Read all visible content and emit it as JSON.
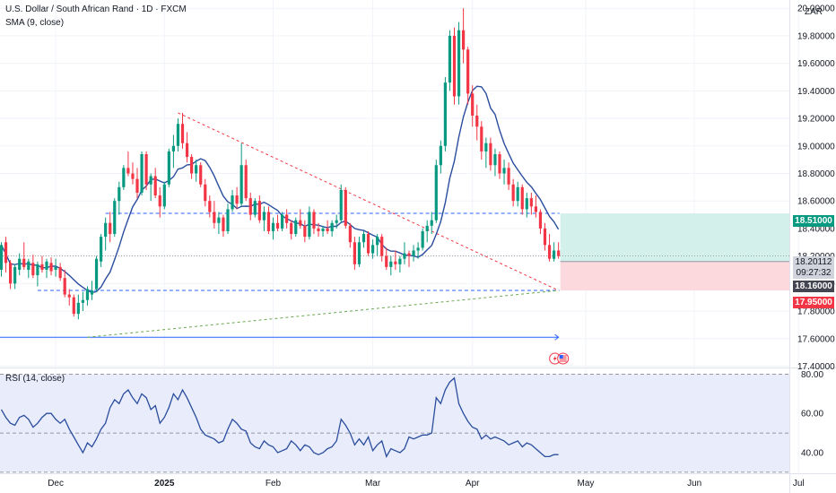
{
  "header": {
    "symbol_title": "U.S. Dollar / South African Rand · 1D · FXCM",
    "sma_label": "SMA (9, close)",
    "rsi_label": "RSI (14, close)",
    "currency": "ZAR"
  },
  "price_tags": {
    "target": "18.51000",
    "current": "18.20112",
    "countdown": "09:27:32",
    "entry": "18.16000",
    "stop": "17.95000"
  },
  "colors": {
    "up": "#089981",
    "down": "#f23645",
    "sma": "#2a4d9e",
    "rsi": "#2a4d9e",
    "level": "#2962ff",
    "downtrend": "#f23645",
    "uptrend": "#6aa84f",
    "profit_zone": "#d3f0ea",
    "loss_zone": "#fbd9dc"
  },
  "chart_data": [
    {
      "type": "candlestick",
      "title": "U.S. Dollar / South African Rand · 1D · FXCM",
      "x_ticks": [
        "Dec",
        "2025",
        "Feb",
        "Mar",
        "Apr",
        "May",
        "Jun",
        "Jul"
      ],
      "y_ticks": [
        "20.00000",
        "19.80000",
        "19.60000",
        "19.40000",
        "19.20000",
        "19.00000",
        "18.80000",
        "18.60000",
        "18.40000",
        "18.20000",
        "18.00000",
        "17.80000",
        "17.60000",
        "17.40000"
      ],
      "y_range": [
        17.39,
        20.06
      ],
      "ohlc": [
        [
          18.1,
          18.3,
          18.05,
          18.28
        ],
        [
          18.3,
          18.34,
          18.08,
          18.15
        ],
        [
          18.15,
          18.17,
          17.96,
          18.0
        ],
        [
          18.0,
          18.14,
          17.96,
          18.12
        ],
        [
          18.1,
          18.22,
          18.06,
          18.18
        ],
        [
          18.18,
          18.3,
          18.1,
          18.12
        ],
        [
          18.1,
          18.18,
          18.04,
          18.16
        ],
        [
          18.15,
          18.21,
          18.04,
          18.06
        ],
        [
          18.06,
          18.16,
          17.98,
          18.14
        ],
        [
          18.14,
          18.2,
          18.08,
          18.1
        ],
        [
          18.1,
          18.18,
          18.04,
          18.16
        ],
        [
          18.15,
          18.19,
          18.06,
          18.09
        ],
        [
          18.1,
          18.18,
          18.05,
          18.12
        ],
        [
          18.12,
          18.15,
          18.02,
          18.04
        ],
        [
          18.04,
          18.1,
          17.9,
          17.92
        ],
        [
          17.92,
          17.96,
          17.84,
          17.9
        ],
        [
          17.9,
          17.92,
          17.76,
          17.78
        ],
        [
          17.78,
          17.92,
          17.74,
          17.86
        ],
        [
          17.86,
          17.94,
          17.8,
          17.88
        ],
        [
          17.88,
          17.98,
          17.84,
          17.96
        ],
        [
          17.92,
          18.02,
          17.88,
          17.95
        ],
        [
          17.96,
          18.2,
          17.94,
          18.18
        ],
        [
          18.16,
          18.36,
          18.12,
          18.34
        ],
        [
          18.34,
          18.48,
          18.24,
          18.44
        ],
        [
          18.44,
          18.52,
          18.3,
          18.36
        ],
        [
          18.36,
          18.62,
          18.34,
          18.6
        ],
        [
          18.6,
          18.74,
          18.5,
          18.7
        ],
        [
          18.7,
          18.86,
          18.68,
          18.84
        ],
        [
          18.84,
          18.96,
          18.78,
          18.8
        ],
        [
          18.8,
          18.88,
          18.72,
          18.76
        ],
        [
          18.76,
          18.84,
          18.62,
          18.66
        ],
        [
          18.66,
          18.96,
          18.64,
          18.94
        ],
        [
          18.94,
          18.96,
          18.68,
          18.72
        ],
        [
          18.72,
          18.8,
          18.6,
          18.78
        ],
        [
          18.78,
          18.84,
          18.62,
          18.64
        ],
        [
          18.64,
          18.7,
          18.48,
          18.56
        ],
        [
          18.56,
          18.74,
          18.54,
          18.72
        ],
        [
          18.72,
          18.98,
          18.7,
          18.96
        ],
        [
          18.96,
          19.08,
          18.84,
          19.0
        ],
        [
          19.0,
          19.2,
          18.96,
          19.16
        ],
        [
          19.16,
          19.24,
          18.98,
          19.02
        ],
        [
          19.02,
          19.1,
          18.88,
          18.92
        ],
        [
          18.92,
          18.94,
          18.76,
          18.8
        ],
        [
          18.8,
          18.9,
          18.74,
          18.86
        ],
        [
          18.86,
          18.88,
          18.7,
          18.72
        ],
        [
          18.72,
          18.76,
          18.56,
          18.6
        ],
        [
          18.6,
          18.64,
          18.48,
          18.52
        ],
        [
          18.52,
          18.6,
          18.4,
          18.44
        ],
        [
          18.44,
          18.52,
          18.36,
          18.48
        ],
        [
          18.48,
          18.5,
          18.34,
          18.38
        ],
        [
          18.38,
          18.58,
          18.36,
          18.54
        ],
        [
          18.54,
          18.68,
          18.52,
          18.64
        ],
        [
          18.64,
          18.7,
          18.54,
          18.58
        ],
        [
          18.58,
          19.02,
          18.56,
          18.86
        ],
        [
          18.86,
          18.9,
          18.6,
          18.62
        ],
        [
          18.62,
          18.66,
          18.46,
          18.5
        ],
        [
          18.5,
          18.62,
          18.48,
          18.6
        ],
        [
          18.6,
          18.64,
          18.44,
          18.46
        ],
        [
          18.46,
          18.56,
          18.38,
          18.52
        ],
        [
          18.52,
          18.56,
          18.36,
          18.38
        ],
        [
          18.38,
          18.48,
          18.32,
          18.44
        ],
        [
          18.44,
          18.5,
          18.38,
          18.4
        ],
        [
          18.4,
          18.52,
          18.38,
          18.5
        ],
        [
          18.5,
          18.54,
          18.4,
          18.44
        ],
        [
          18.44,
          18.46,
          18.32,
          18.36
        ],
        [
          18.36,
          18.48,
          18.34,
          18.46
        ],
        [
          18.46,
          18.54,
          18.4,
          18.42
        ],
        [
          18.42,
          18.46,
          18.3,
          18.34
        ],
        [
          18.34,
          18.56,
          18.32,
          18.52
        ],
        [
          18.52,
          18.54,
          18.36,
          18.4
        ],
        [
          18.4,
          18.44,
          18.34,
          18.38
        ],
        [
          18.38,
          18.42,
          18.34,
          18.4
        ],
        [
          18.4,
          18.46,
          18.36,
          18.38
        ],
        [
          18.38,
          18.46,
          18.34,
          18.44
        ],
        [
          18.44,
          18.5,
          18.4,
          18.46
        ],
        [
          18.46,
          18.72,
          18.44,
          18.68
        ],
        [
          18.68,
          18.7,
          18.4,
          18.42
        ],
        [
          18.42,
          18.44,
          18.26,
          18.3
        ],
        [
          18.3,
          18.34,
          18.1,
          18.14
        ],
        [
          18.14,
          18.34,
          18.12,
          18.3
        ],
        [
          18.3,
          18.38,
          18.26,
          18.36
        ],
        [
          18.36,
          18.38,
          18.2,
          18.22
        ],
        [
          18.22,
          18.32,
          18.18,
          18.28
        ],
        [
          18.28,
          18.36,
          18.2,
          18.34
        ],
        [
          18.34,
          18.36,
          18.16,
          18.2
        ],
        [
          18.2,
          18.26,
          18.1,
          18.12
        ],
        [
          18.12,
          18.2,
          18.06,
          18.16
        ],
        [
          18.16,
          18.24,
          18.1,
          18.14
        ],
        [
          18.14,
          18.2,
          18.08,
          18.18
        ],
        [
          18.18,
          18.3,
          18.14,
          18.22
        ],
        [
          18.22,
          18.24,
          18.12,
          18.2
        ],
        [
          18.2,
          18.28,
          18.16,
          18.24
        ],
        [
          18.24,
          18.3,
          18.18,
          18.26
        ],
        [
          18.26,
          18.4,
          18.24,
          18.38
        ],
        [
          18.38,
          18.46,
          18.3,
          18.42
        ],
        [
          18.42,
          18.52,
          18.36,
          18.46
        ],
        [
          18.46,
          18.9,
          18.44,
          18.86
        ],
        [
          18.86,
          19.04,
          18.8,
          19.0
        ],
        [
          19.0,
          19.5,
          18.96,
          19.46
        ],
        [
          19.46,
          19.84,
          19.4,
          19.8
        ],
        [
          19.8,
          19.86,
          19.3,
          19.36
        ],
        [
          19.36,
          19.9,
          19.3,
          19.84
        ],
        [
          19.84,
          20.0,
          19.6,
          19.7
        ],
        [
          19.7,
          19.72,
          19.3,
          19.38
        ],
        [
          19.38,
          19.44,
          19.14,
          19.22
        ],
        [
          19.22,
          19.3,
          19.04,
          19.14
        ],
        [
          19.14,
          19.18,
          18.9,
          18.96
        ],
        [
          18.96,
          19.06,
          18.84,
          19.02
        ],
        [
          19.02,
          19.06,
          18.82,
          18.86
        ],
        [
          18.86,
          18.98,
          18.78,
          18.94
        ],
        [
          18.94,
          18.96,
          18.76,
          18.8
        ],
        [
          18.8,
          18.9,
          18.72,
          18.84
        ],
        [
          18.84,
          18.88,
          18.68,
          18.72
        ],
        [
          18.72,
          18.76,
          18.56,
          18.6
        ],
        [
          18.6,
          18.74,
          18.56,
          18.7
        ],
        [
          18.7,
          18.72,
          18.5,
          18.54
        ],
        [
          18.54,
          18.66,
          18.48,
          18.62
        ],
        [
          18.62,
          18.66,
          18.5,
          18.56
        ],
        [
          18.56,
          18.64,
          18.48,
          18.52
        ],
        [
          18.52,
          18.54,
          18.36,
          18.4
        ],
        [
          18.4,
          18.44,
          18.24,
          18.28
        ],
        [
          18.28,
          18.36,
          18.16,
          18.18
        ],
        [
          18.18,
          18.3,
          18.16,
          18.24
        ],
        [
          18.24,
          18.3,
          18.18,
          18.2
        ]
      ]
    },
    {
      "type": "line",
      "title": "RSI (14, close)",
      "y_ticks": [
        "80.00",
        "60.00",
        "40.00"
      ],
      "y_range": [
        29.5,
        82.5
      ],
      "values": [
        62,
        58,
        55,
        54,
        58,
        59,
        57,
        53,
        55,
        58,
        60,
        60,
        57,
        55,
        57,
        52,
        48,
        44,
        40,
        45,
        43,
        47,
        52,
        55,
        63,
        67,
        65,
        70,
        72,
        68,
        65,
        70,
        68,
        62,
        64,
        55,
        58,
        63,
        70,
        67,
        72,
        68,
        63,
        58,
        52,
        49,
        48,
        47,
        45,
        46,
        52,
        57,
        55,
        52,
        51,
        45,
        43,
        42,
        46,
        44,
        43,
        40,
        41,
        42,
        46,
        44,
        41,
        44,
        43,
        40,
        39,
        40,
        42,
        43,
        46,
        57,
        54,
        50,
        44,
        47,
        44,
        48,
        41,
        44,
        46,
        38,
        42,
        41,
        40,
        42,
        48,
        47,
        48,
        49,
        49,
        50,
        68,
        65,
        72,
        76,
        78,
        65,
        60,
        56,
        53,
        52,
        47,
        49,
        47,
        48,
        47,
        46,
        44,
        45,
        46,
        43,
        45,
        44,
        42,
        40,
        38,
        38,
        39,
        39
      ],
      "levels": [
        80,
        50,
        30
      ]
    }
  ]
}
